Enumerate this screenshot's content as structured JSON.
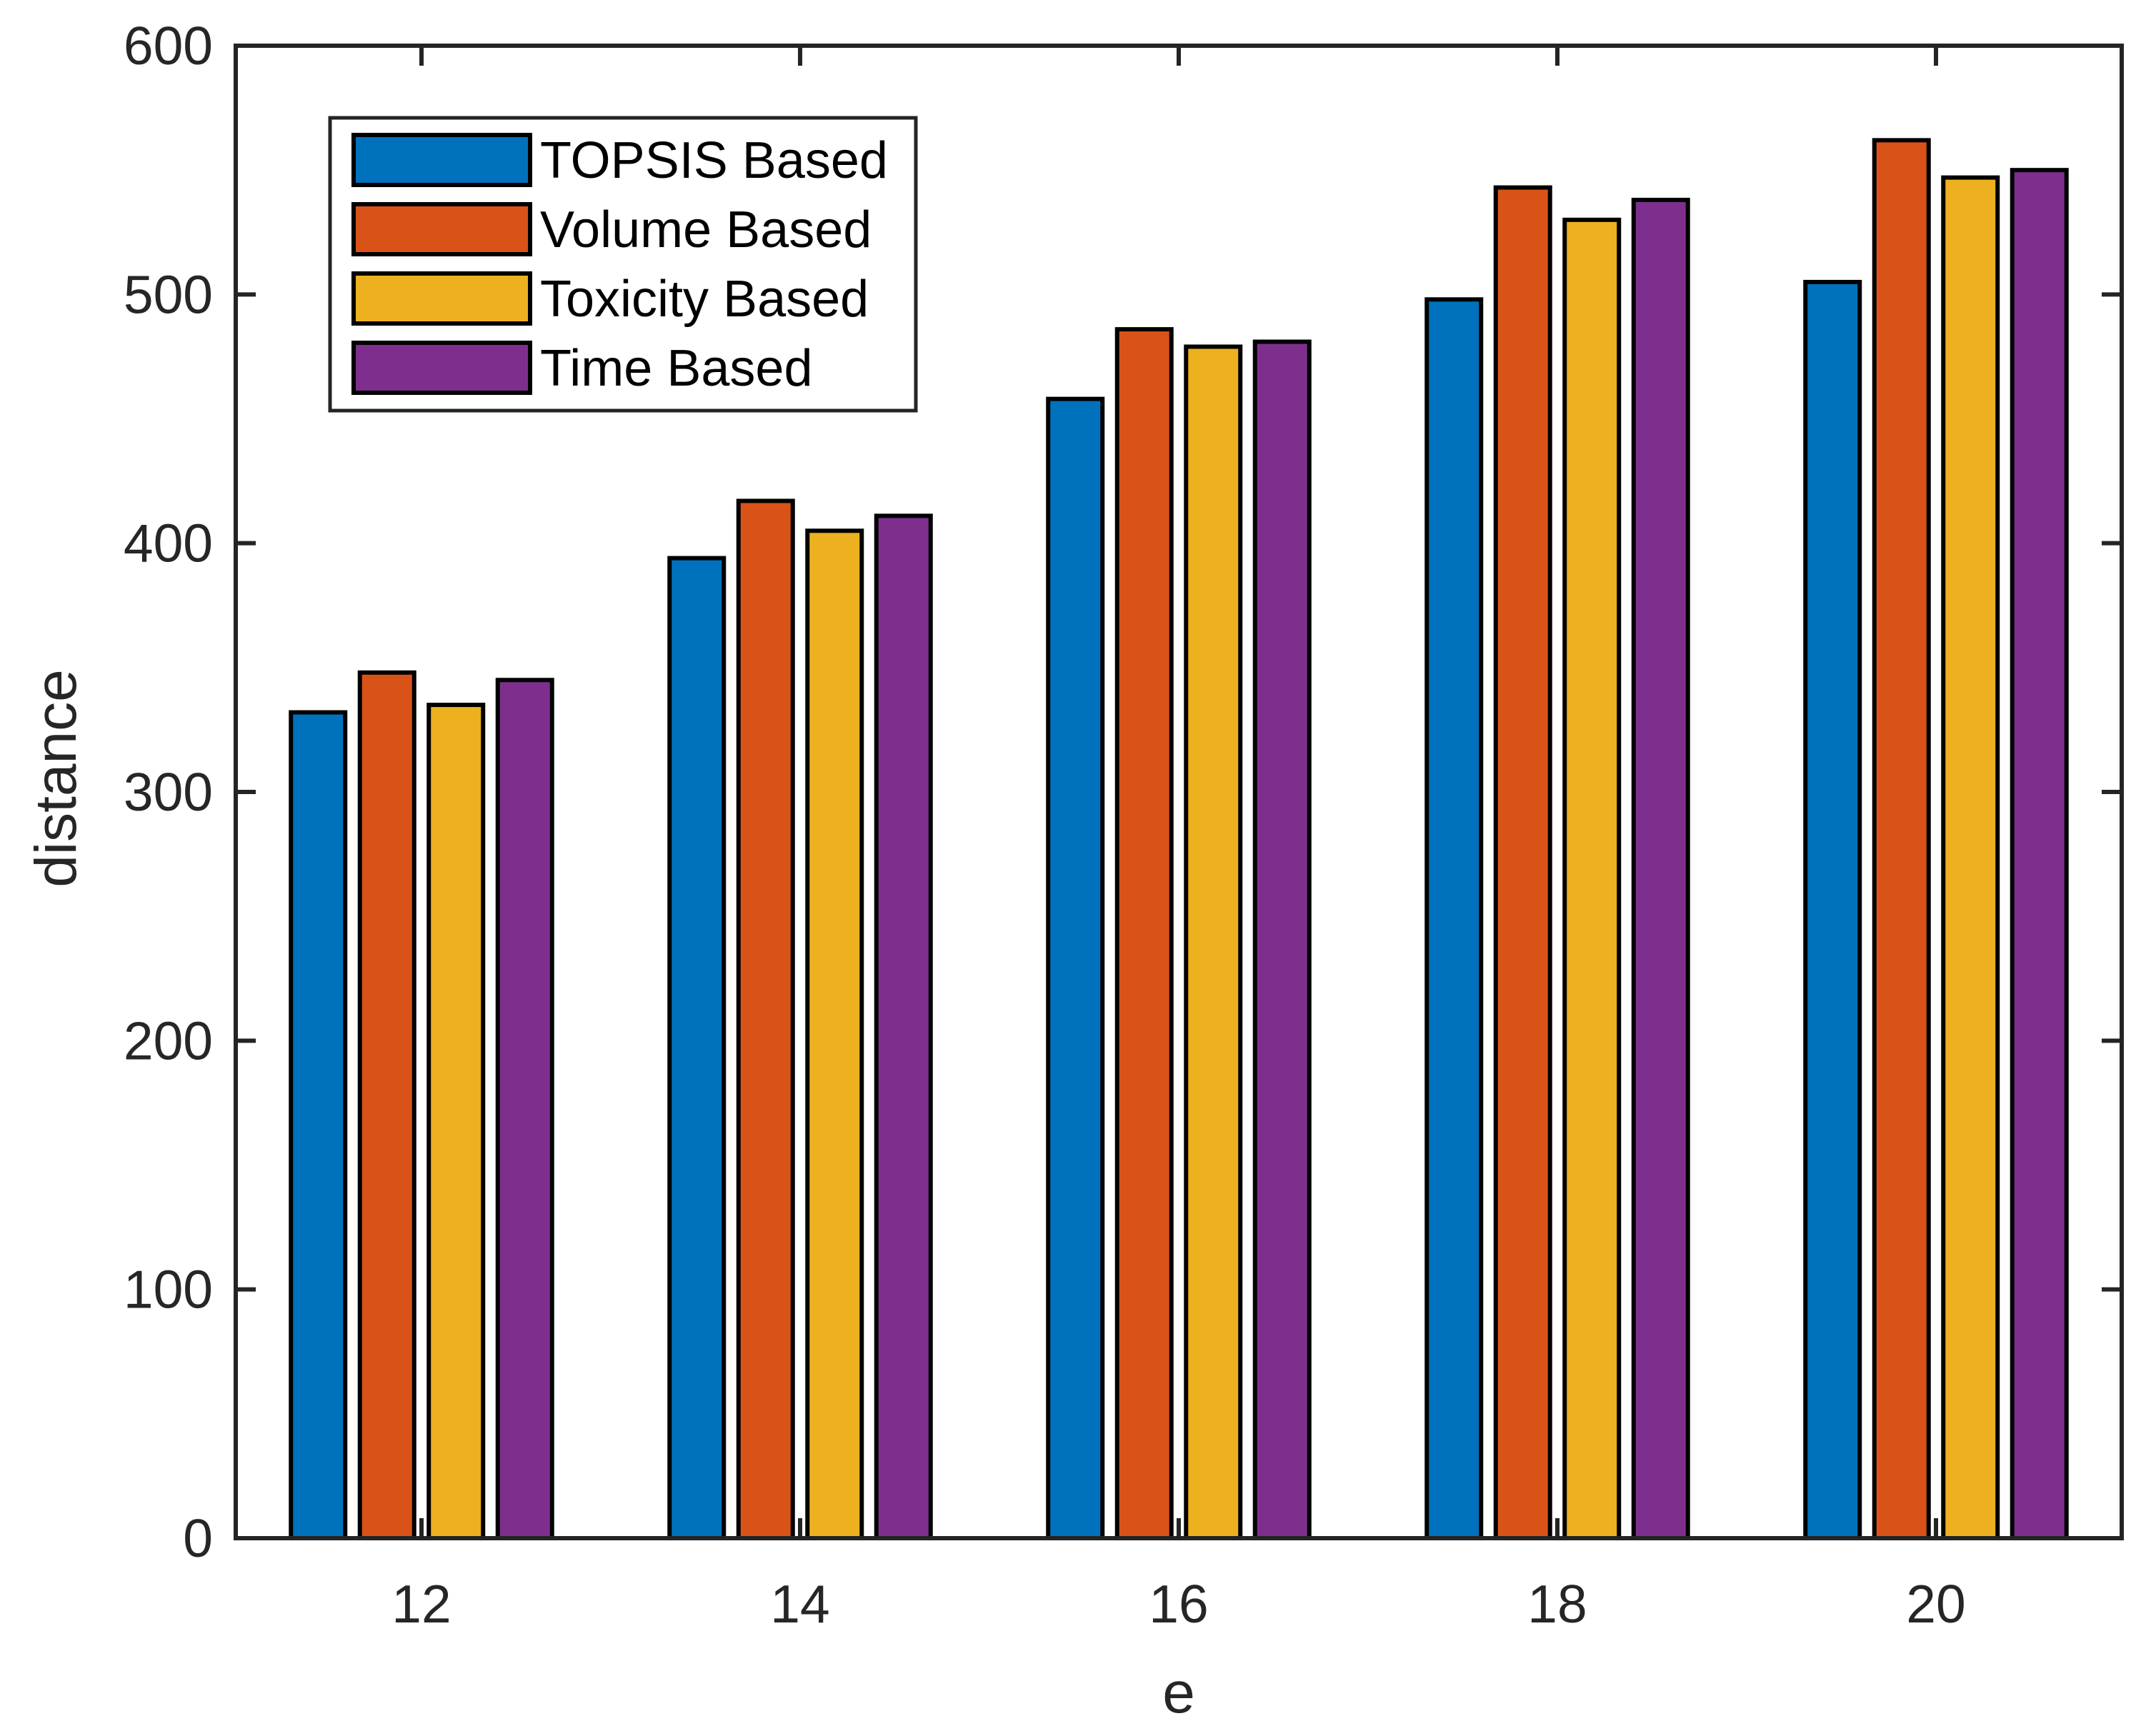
{
  "figure": {
    "background_color": "#ffffff",
    "frame_color": "#242424",
    "bar_edge_color": "#000000",
    "legend_border_color": "#242424",
    "legend_background": "#ffffff"
  },
  "chart_data": {
    "type": "bar",
    "title": "",
    "xlabel": "e",
    "ylabel": "distance",
    "categories": [
      12,
      14,
      16,
      18,
      20
    ],
    "series": [
      {
        "name": "TOPSIS Based",
        "color": "#0072BD",
        "values": [
          332,
          394,
          458,
          498,
          505
        ]
      },
      {
        "name": "Volume Based",
        "color": "#D95319",
        "values": [
          348,
          417,
          486,
          543,
          562
        ]
      },
      {
        "name": "Toxicity Based",
        "color": "#EDB120",
        "values": [
          335,
          405,
          479,
          530,
          547
        ]
      },
      {
        "name": "Time Based",
        "color": "#7E2F8E",
        "values": [
          345,
          411,
          481,
          538,
          550
        ]
      }
    ],
    "ylim": [
      0,
      600
    ],
    "y_ticks": [
      0,
      100,
      200,
      300,
      400,
      500,
      600
    ],
    "grid": false,
    "legend_position": "top-left",
    "legend_entries": [
      "TOPSIS Based",
      "Volume Based",
      "Toxicity Based",
      "Time Based"
    ]
  }
}
